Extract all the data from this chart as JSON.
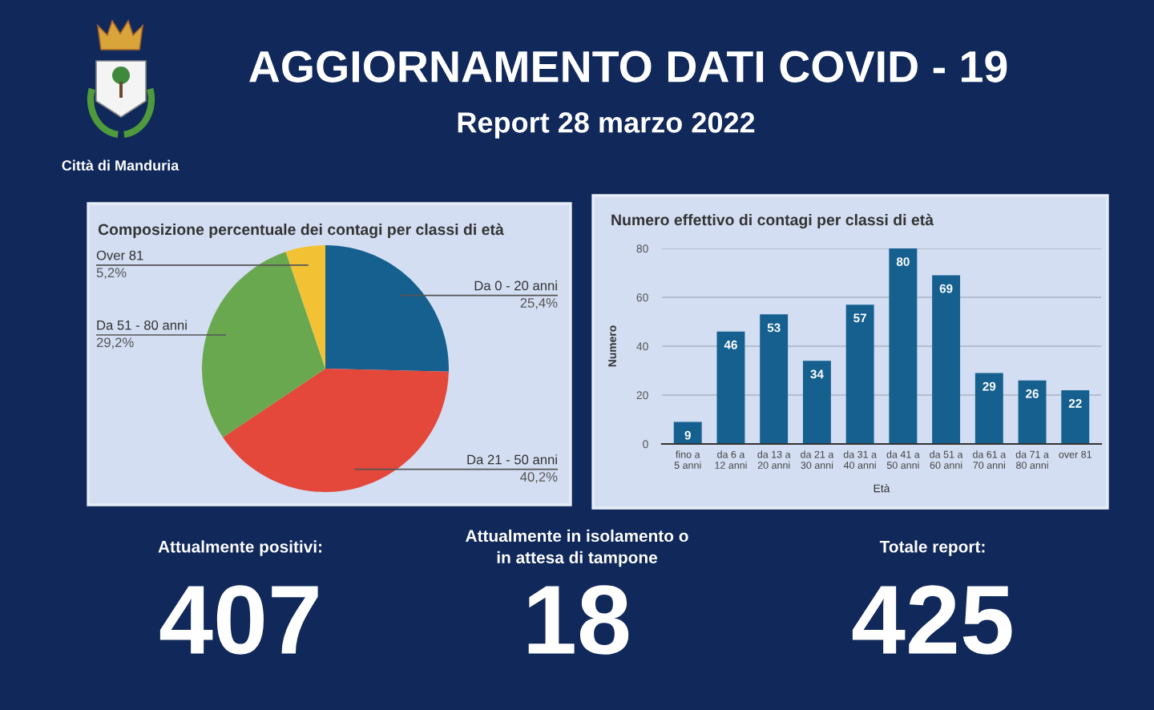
{
  "chart_data": [
    {
      "type": "other",
      "title": "AGGIORNAMENTO DATI COVID - 19",
      "subtitle": "Report 28 marzo 2022",
      "annotations": [
        "Città di Manduria"
      ]
    },
    {
      "type": "pie",
      "title": "Composizione percentuale dei contagi per classi di età",
      "categories": [
        "Da 0 - 20 anni",
        "Da 21 - 50 anni",
        "Da 51 - 80 anni",
        "Over 81"
      ],
      "values": [
        25.4,
        40.2,
        29.2,
        5.2
      ],
      "colors": [
        "#15608f",
        "#e3483a",
        "#6aa84f",
        "#f3c234"
      ],
      "value_labels": [
        "25,4%",
        "40,2%",
        "29,2%",
        "5,2%"
      ]
    },
    {
      "type": "bar",
      "title": "Numero effettivo di contagi per classi di età",
      "categories": [
        "fino a\n5 anni",
        "da 6 a\n12 anni",
        "da 13 a\n20 anni",
        "da 21 a\n30 anni",
        "da 31 a\n40 anni",
        "da 41 a\n50 anni",
        "da 51 a\n60 anni",
        "da 61 a\n70 anni",
        "da 71 a\n80 anni",
        "over 81"
      ],
      "values": [
        9,
        46,
        53,
        34,
        57,
        80,
        69,
        29,
        26,
        22
      ],
      "color": "#15608f",
      "xlabel": "Età",
      "ylabel": "Numero",
      "ylim": [
        0,
        80
      ],
      "yticks": [
        0,
        20,
        40,
        60,
        80
      ],
      "grid": "y",
      "data_labels": true
    },
    {
      "type": "other",
      "annotations": [
        "Attualmente positivi:",
        "407",
        "Attualmente in isolamento o\nin attesa di tampone",
        "18",
        "Totale report:",
        "425"
      ]
    }
  ]
}
